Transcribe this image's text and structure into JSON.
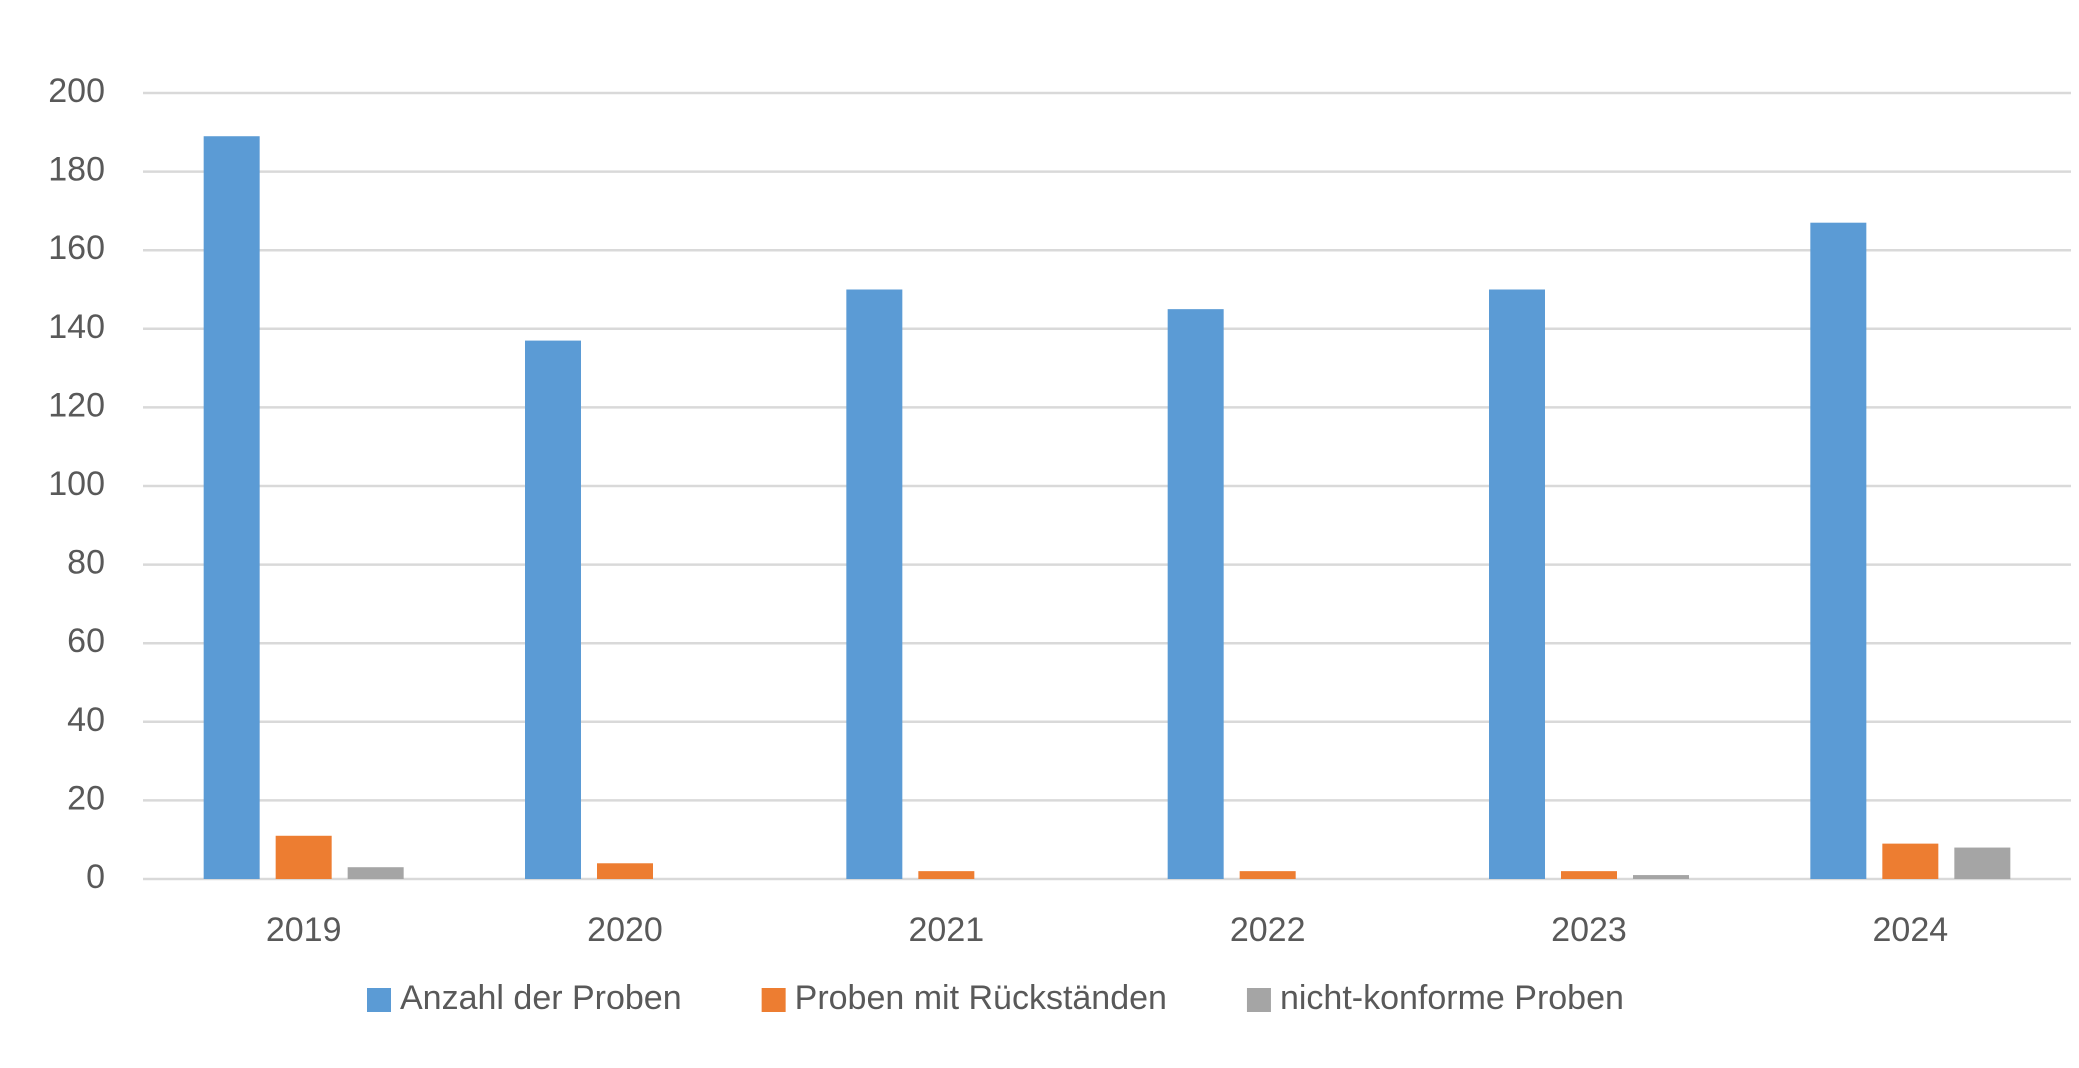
{
  "chart_data": {
    "type": "bar",
    "categories": [
      "2019",
      "2020",
      "2021",
      "2022",
      "2023",
      "2024"
    ],
    "series": [
      {
        "name": "Anzahl der Proben",
        "color": "#5b9bd5",
        "values": [
          189,
          137,
          150,
          145,
          150,
          167
        ]
      },
      {
        "name": "Proben mit Rückständen",
        "color": "#ed7d31",
        "values": [
          11,
          4,
          2,
          2,
          2,
          9
        ]
      },
      {
        "name": "nicht-konforme Proben",
        "color": "#a5a5a5",
        "values": [
          3,
          0,
          0,
          0,
          1,
          8
        ]
      }
    ],
    "ylim": [
      0,
      200
    ],
    "yticks": [
      0,
      20,
      40,
      60,
      80,
      100,
      120,
      140,
      160,
      180,
      200
    ],
    "grid": true,
    "legend": "bottom"
  }
}
